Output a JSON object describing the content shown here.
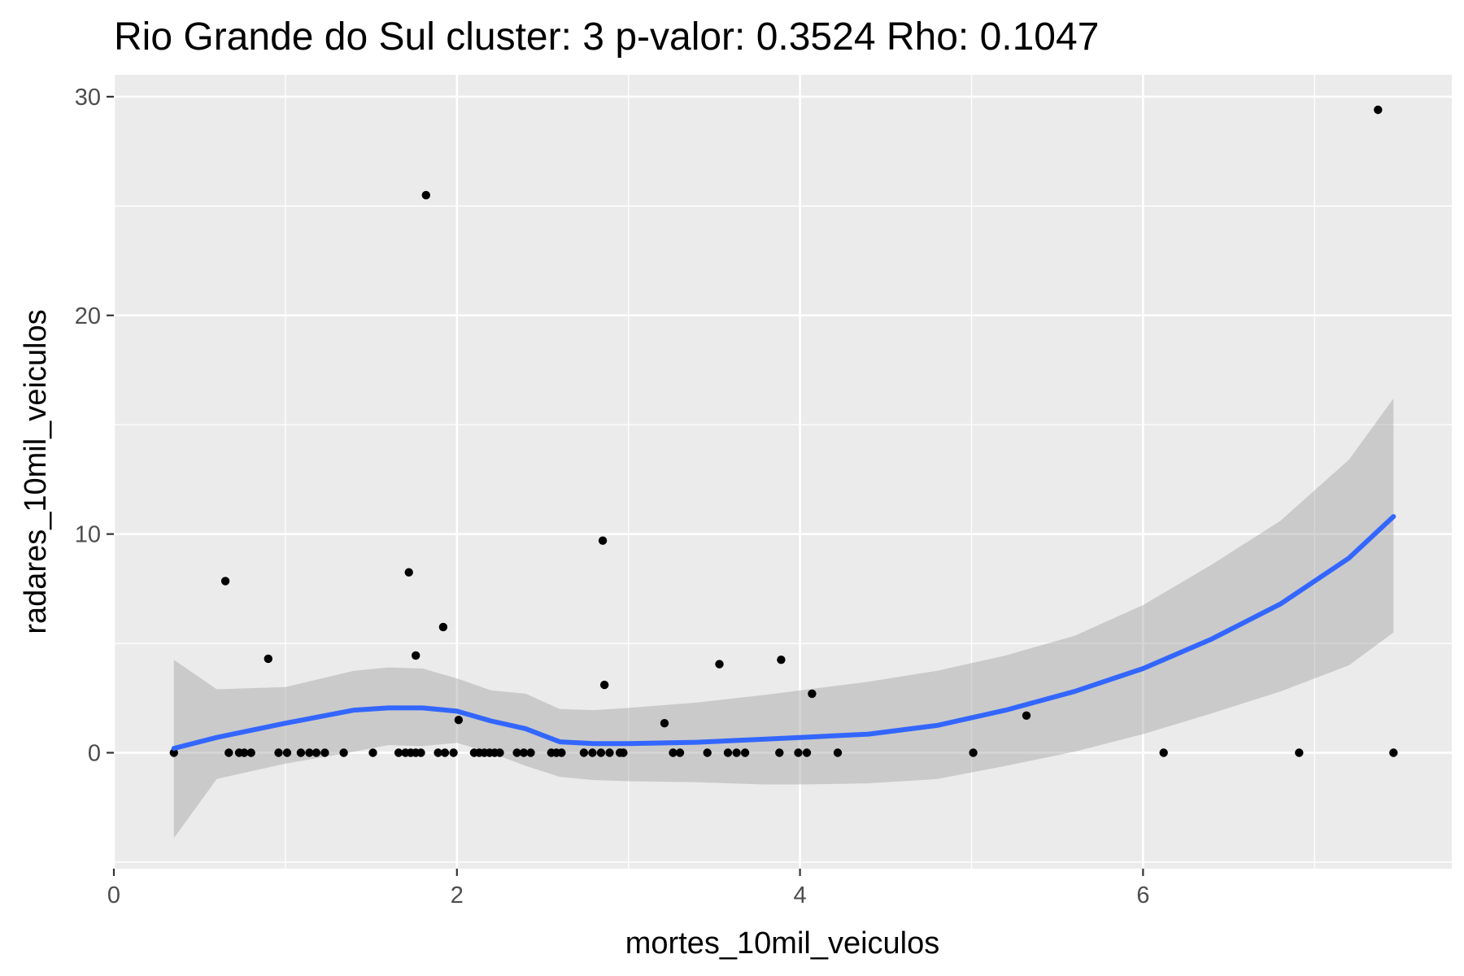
{
  "chart_data": {
    "type": "scatter",
    "title": "Rio Grande do Sul cluster: 3 p-valor: 0.3524 Rho: 0.1047",
    "xlabel": "mortes_10mil_veiculos",
    "ylabel": "radares_10mil_veiculos",
    "xlim": [
      0,
      7.8
    ],
    "ylim": [
      -5.3,
      31
    ],
    "x_ticks": [
      0,
      2,
      4,
      6
    ],
    "x_tick_labels": [
      "0",
      "2",
      "4",
      "6"
    ],
    "y_ticks": [
      0,
      10,
      20,
      30
    ],
    "y_tick_labels": [
      "0",
      "10",
      "20",
      "30"
    ],
    "grid": true,
    "colors": {
      "panel": "#ebebeb",
      "grid": "#ffffff",
      "points": "#000000",
      "smooth_line": "#3366ff",
      "ribbon": "#999999"
    },
    "points": [
      {
        "x": 0.35,
        "y": 0
      },
      {
        "x": 0.67,
        "y": 0
      },
      {
        "x": 0.73,
        "y": 0
      },
      {
        "x": 0.76,
        "y": 0
      },
      {
        "x": 0.8,
        "y": 0
      },
      {
        "x": 0.96,
        "y": 0
      },
      {
        "x": 1.01,
        "y": 0
      },
      {
        "x": 1.09,
        "y": 0
      },
      {
        "x": 1.14,
        "y": 0
      },
      {
        "x": 1.18,
        "y": 0
      },
      {
        "x": 1.23,
        "y": 0
      },
      {
        "x": 1.34,
        "y": 0
      },
      {
        "x": 1.51,
        "y": 0
      },
      {
        "x": 1.66,
        "y": 0
      },
      {
        "x": 1.7,
        "y": 0
      },
      {
        "x": 1.73,
        "y": 0
      },
      {
        "x": 1.76,
        "y": 0
      },
      {
        "x": 1.79,
        "y": 0
      },
      {
        "x": 1.89,
        "y": 0
      },
      {
        "x": 1.93,
        "y": 0
      },
      {
        "x": 1.98,
        "y": 0
      },
      {
        "x": 2.1,
        "y": 0
      },
      {
        "x": 2.13,
        "y": 0
      },
      {
        "x": 2.16,
        "y": 0
      },
      {
        "x": 2.19,
        "y": 0
      },
      {
        "x": 2.22,
        "y": 0
      },
      {
        "x": 2.25,
        "y": 0
      },
      {
        "x": 2.35,
        "y": 0
      },
      {
        "x": 2.39,
        "y": 0
      },
      {
        "x": 2.43,
        "y": 0
      },
      {
        "x": 2.55,
        "y": 0
      },
      {
        "x": 2.58,
        "y": 0
      },
      {
        "x": 2.61,
        "y": 0
      },
      {
        "x": 2.74,
        "y": 0
      },
      {
        "x": 2.79,
        "y": 0
      },
      {
        "x": 2.84,
        "y": 0
      },
      {
        "x": 2.89,
        "y": 0
      },
      {
        "x": 2.95,
        "y": 0
      },
      {
        "x": 2.97,
        "y": 0
      },
      {
        "x": 3.26,
        "y": 0
      },
      {
        "x": 3.3,
        "y": 0
      },
      {
        "x": 3.46,
        "y": 0
      },
      {
        "x": 3.58,
        "y": 0
      },
      {
        "x": 3.63,
        "y": 0
      },
      {
        "x": 3.68,
        "y": 0
      },
      {
        "x": 3.88,
        "y": 0
      },
      {
        "x": 3.99,
        "y": 0
      },
      {
        "x": 4.04,
        "y": 0
      },
      {
        "x": 4.22,
        "y": 0
      },
      {
        "x": 5.01,
        "y": 0
      },
      {
        "x": 6.12,
        "y": 0
      },
      {
        "x": 6.91,
        "y": 0
      },
      {
        "x": 7.46,
        "y": 0
      },
      {
        "x": 0.65,
        "y": 7.85
      },
      {
        "x": 0.9,
        "y": 4.3
      },
      {
        "x": 1.72,
        "y": 8.25
      },
      {
        "x": 1.76,
        "y": 4.45
      },
      {
        "x": 1.82,
        "y": 25.5
      },
      {
        "x": 1.92,
        "y": 5.75
      },
      {
        "x": 2.01,
        "y": 1.5
      },
      {
        "x": 2.85,
        "y": 9.7
      },
      {
        "x": 2.86,
        "y": 3.1
      },
      {
        "x": 3.21,
        "y": 1.35
      },
      {
        "x": 3.53,
        "y": 4.05
      },
      {
        "x": 3.89,
        "y": 4.25
      },
      {
        "x": 4.07,
        "y": 2.7
      },
      {
        "x": 5.32,
        "y": 1.7
      },
      {
        "x": 7.37,
        "y": 29.4
      }
    ],
    "smooth_line": {
      "x": [
        0.35,
        0.6,
        1.0,
        1.4,
        1.6,
        1.8,
        2.0,
        2.2,
        2.4,
        2.6,
        2.8,
        3.0,
        3.4,
        3.8,
        4.0,
        4.4,
        4.8,
        5.2,
        5.6,
        6.0,
        6.4,
        6.8,
        7.2,
        7.46
      ],
      "y": [
        0.2,
        0.7,
        1.35,
        1.95,
        2.05,
        2.05,
        1.9,
        1.45,
        1.1,
        0.5,
        0.42,
        0.42,
        0.48,
        0.62,
        0.7,
        0.85,
        1.25,
        1.95,
        2.8,
        3.85,
        5.2,
        6.8,
        8.9,
        10.8
      ],
      "lower": [
        -3.9,
        -1.2,
        -0.5,
        0.05,
        0.35,
        0.3,
        0.45,
        0.0,
        -0.6,
        -1.1,
        -1.25,
        -1.3,
        -1.35,
        -1.45,
        -1.45,
        -1.4,
        -1.2,
        -0.6,
        0.05,
        0.85,
        1.8,
        2.8,
        4.0,
        5.5
      ],
      "upper": [
        4.25,
        2.9,
        3.0,
        3.75,
        3.9,
        3.85,
        3.4,
        2.85,
        2.7,
        2.0,
        1.95,
        2.05,
        2.3,
        2.65,
        2.85,
        3.25,
        3.75,
        4.45,
        5.35,
        6.75,
        8.6,
        10.6,
        13.4,
        16.2
      ]
    }
  }
}
